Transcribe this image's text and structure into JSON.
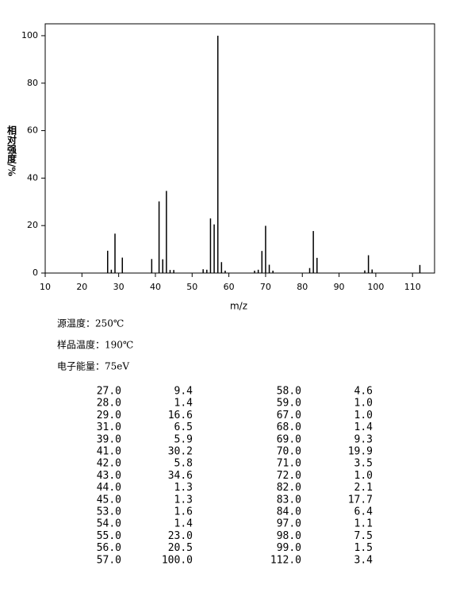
{
  "chart_data": {
    "type": "bar",
    "xlabel": "m/z",
    "ylabel": "相对强度/%",
    "x": [
      27,
      28,
      29,
      31,
      39,
      41,
      42,
      43,
      44,
      45,
      53,
      54,
      55,
      56,
      57,
      58,
      59,
      67,
      68,
      69,
      70,
      71,
      72,
      82,
      83,
      84,
      97,
      98,
      99,
      112
    ],
    "x_labels": [
      "27.0",
      "28.0",
      "29.0",
      "31.0",
      "39.0",
      "41.0",
      "42.0",
      "43.0",
      "44.0",
      "45.0",
      "53.0",
      "54.0",
      "55.0",
      "56.0",
      "57.0",
      "58.0",
      "59.0",
      "67.0",
      "68.0",
      "69.0",
      "70.0",
      "71.0",
      "72.0",
      "82.0",
      "83.0",
      "84.0",
      "97.0",
      "98.0",
      "99.0",
      "112.0"
    ],
    "values": [
      9.4,
      1.4,
      16.6,
      6.5,
      5.9,
      30.2,
      5.8,
      34.6,
      1.3,
      1.3,
      1.6,
      1.4,
      23.0,
      20.5,
      100.0,
      4.6,
      1.0,
      1.0,
      1.4,
      9.3,
      19.9,
      3.5,
      1.0,
      2.1,
      17.7,
      6.4,
      1.1,
      7.5,
      1.5,
      3.4
    ],
    "value_labels": [
      "9.4",
      "1.4",
      "16.6",
      "6.5",
      "5.9",
      "30.2",
      "5.8",
      "34.6",
      "1.3",
      "1.3",
      "1.6",
      "1.4",
      "23.0",
      "20.5",
      "100.0",
      "4.6",
      "1.0",
      "1.0",
      "1.4",
      "9.3",
      "19.9",
      "3.5",
      "1.0",
      "2.1",
      "17.7",
      "6.4",
      "1.1",
      "7.5",
      "1.5",
      "3.4"
    ],
    "color": "#000000",
    "xlim": [
      10,
      116
    ],
    "xticks": [
      10,
      20,
      30,
      40,
      50,
      60,
      70,
      80,
      90,
      100,
      110
    ],
    "ylim": [
      0,
      105
    ],
    "yticks": [
      0,
      20,
      40,
      60,
      80,
      100
    ]
  },
  "info": [
    "源温度：250℃",
    "样品温度：190℃",
    "电子能量：75eV"
  ]
}
